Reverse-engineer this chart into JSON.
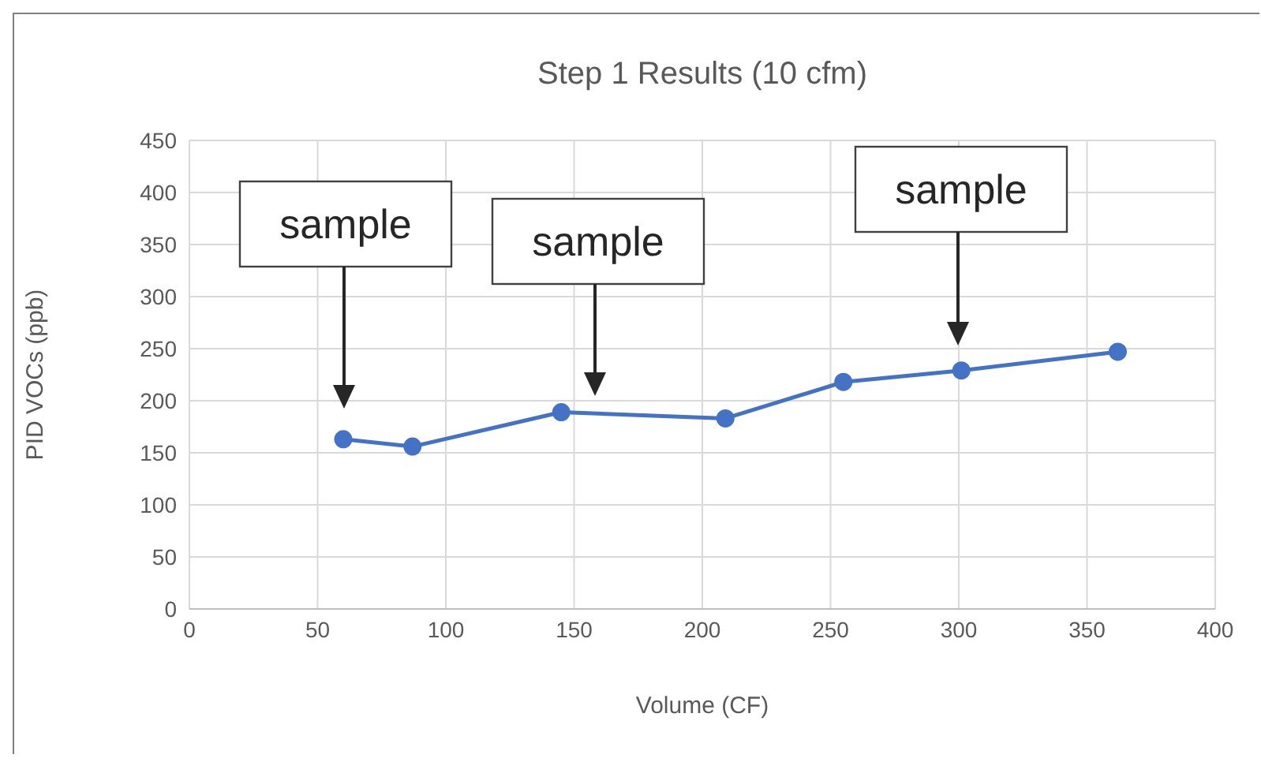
{
  "chart_data": {
    "type": "line",
    "title": "Step 1 Results (10 cfm)",
    "xlabel": "Volume (CF)",
    "ylabel": "PID VOCs (ppb)",
    "x": [
      60,
      87,
      145,
      209,
      255,
      301,
      362
    ],
    "series": [
      {
        "color": "#4472c4",
        "values": [
          163,
          156,
          189,
          183,
          218,
          229,
          247
        ]
      }
    ],
    "xlim": [
      0,
      400
    ],
    "xticks": [
      0,
      50,
      100,
      150,
      200,
      250,
      300,
      350,
      400
    ],
    "ylim": [
      0,
      450
    ],
    "yticks": [
      0,
      50,
      100,
      150,
      200,
      250,
      300,
      350,
      400,
      450
    ],
    "grid": true,
    "marker": "circle",
    "line_style": "solid",
    "annotations": [
      "sample",
      "sample",
      "sample"
    ]
  }
}
